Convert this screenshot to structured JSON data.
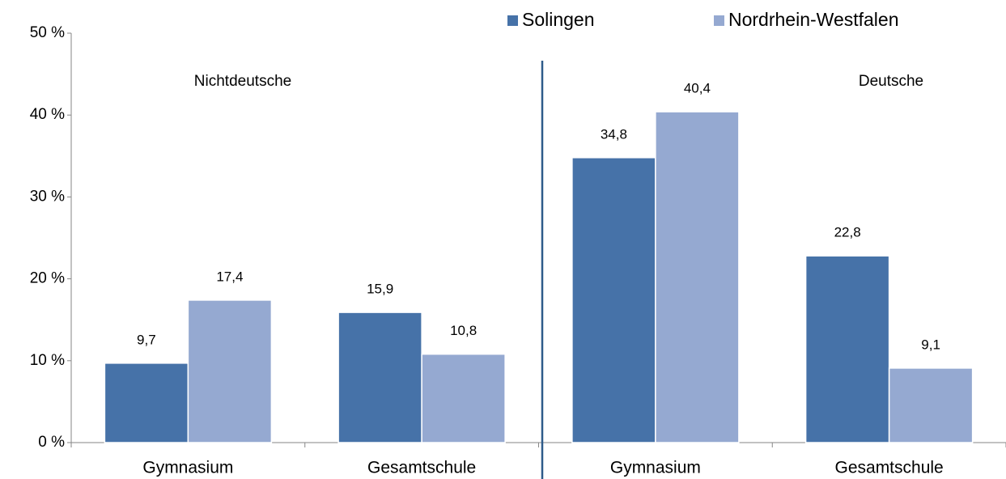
{
  "chart_data": {
    "type": "bar",
    "categories": [
      "Gymnasium",
      "Gesamtschule",
      "Gymnasium",
      "Gesamtschule"
    ],
    "series": [
      {
        "name": "Solingen",
        "color": "#4672a8",
        "values": [
          9.7,
          15.9,
          34.8,
          22.8
        ],
        "value_labels": [
          "9,7",
          "15,9",
          "34,8",
          "22,8"
        ]
      },
      {
        "name": "Nordrhein-Westfalen",
        "color": "#95a9d1",
        "values": [
          17.4,
          10.8,
          40.4,
          9.1
        ],
        "value_labels": [
          "17,4",
          "10,8",
          "40,4",
          "9,1"
        ]
      }
    ],
    "annotations": [
      "Nichtdeutsche",
      "Deutsche"
    ],
    "ylim": [
      0,
      50
    ],
    "yticks": [
      {
        "value": 0,
        "label": "0 %"
      },
      {
        "value": 10,
        "label": "10 %"
      },
      {
        "value": 20,
        "label": "20 %"
      },
      {
        "value": 30,
        "label": "30 %"
      },
      {
        "value": 40,
        "label": "40 %"
      },
      {
        "value": 50,
        "label": "50 %"
      }
    ],
    "legend": "top"
  }
}
